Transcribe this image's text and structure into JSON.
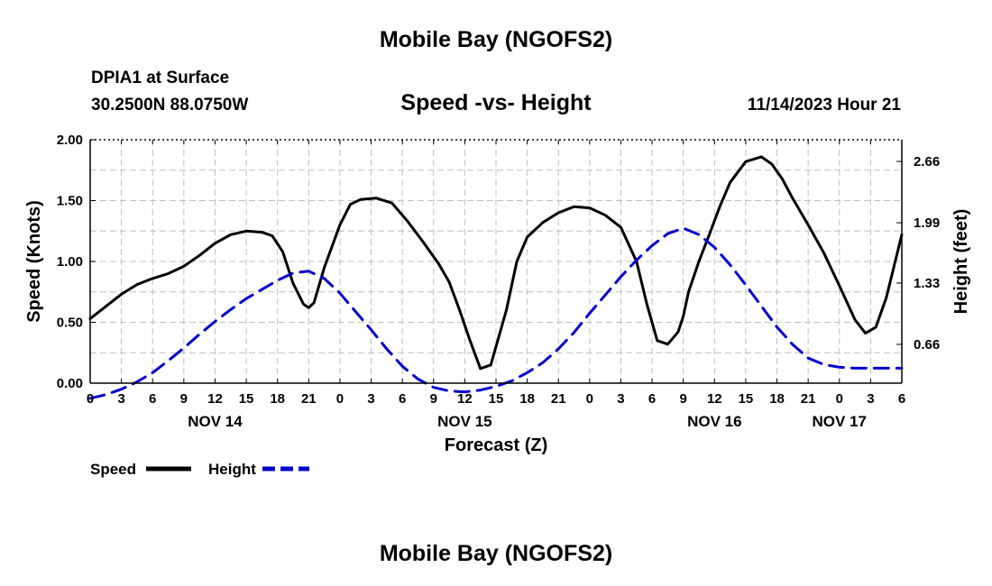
{
  "page": {
    "title": "Mobile Bay (NGOFS2)",
    "footer_title": "Mobile Bay (NGOFS2)",
    "station_line1": "DPIA1 at Surface",
    "station_line2": "30.2500N  88.0750W",
    "chart_title": "Speed -vs- Height",
    "datetime": "11/14/2023 Hour 21"
  },
  "chart_data": {
    "type": "line",
    "title": "Speed -vs- Height",
    "xlabel": "Forecast (Z)",
    "ylabel": "Speed (Knots)",
    "y2label": "Height (feet)",
    "x_range_hours": [
      0,
      78
    ],
    "x_tick_labels": [
      "0",
      "3",
      "6",
      "9",
      "12",
      "15",
      "18",
      "21",
      "0",
      "3",
      "6",
      "9",
      "12",
      "15",
      "18",
      "21",
      "0",
      "3",
      "6",
      "9",
      "12",
      "15",
      "18",
      "21",
      "0",
      "3",
      "6"
    ],
    "day_labels": [
      {
        "label": "NOV 14",
        "hour": 12
      },
      {
        "label": "NOV 15",
        "hour": 36
      },
      {
        "label": "NOV 16",
        "hour": 60
      },
      {
        "label": "NOV 17",
        "hour": 72
      }
    ],
    "ylim": [
      0,
      2.0
    ],
    "y_ticks": [
      "0.00",
      "0.50",
      "1.00",
      "1.50",
      "2.00"
    ],
    "y2_ticks": [
      {
        "label": "0.66",
        "value": 0.66
      },
      {
        "label": "1.33",
        "value": 1.33
      },
      {
        "label": "1.99",
        "value": 1.99
      },
      {
        "label": "2.66",
        "value": 2.66
      }
    ],
    "grid": true,
    "legend": [
      {
        "name": "Speed",
        "color": "#000000",
        "style": "solid"
      },
      {
        "name": "Height",
        "color": "#0000cc",
        "style": "dashed"
      }
    ],
    "series": [
      {
        "name": "Speed",
        "axis": "left",
        "color": "#000000",
        "style": "solid",
        "x": [
          0,
          1.5,
          3,
          4.5,
          6,
          7.5,
          9,
          10.5,
          12,
          13.5,
          15,
          16.5,
          17.5,
          18.5,
          19.5,
          20.5,
          21,
          21.5,
          22.5,
          24,
          25,
          26,
          27.5,
          29,
          30.5,
          32,
          33.5,
          34.5,
          35.5,
          36.5,
          37.5,
          38.5,
          39,
          40,
          41,
          42,
          43.5,
          45,
          46.5,
          48,
          49.5,
          51,
          52.5,
          53.5,
          54.5,
          55.5,
          56.5,
          57,
          57.5,
          58.5,
          59.5,
          60.5,
          61.5,
          63,
          64.5,
          65.5,
          66.5,
          67.5,
          69,
          70.5,
          72,
          73.5,
          74.5,
          75.5,
          76.5,
          78
        ],
        "y": [
          0.53,
          0.63,
          0.73,
          0.81,
          0.86,
          0.9,
          0.96,
          1.05,
          1.15,
          1.22,
          1.25,
          1.24,
          1.21,
          1.08,
          0.82,
          0.65,
          0.62,
          0.66,
          0.95,
          1.3,
          1.47,
          1.51,
          1.52,
          1.48,
          1.33,
          1.16,
          0.98,
          0.83,
          0.6,
          0.35,
          0.12,
          0.15,
          0.3,
          0.6,
          1.0,
          1.2,
          1.32,
          1.4,
          1.45,
          1.44,
          1.38,
          1.28,
          1.0,
          0.65,
          0.35,
          0.32,
          0.42,
          0.55,
          0.75,
          1.0,
          1.22,
          1.45,
          1.65,
          1.82,
          1.86,
          1.8,
          1.68,
          1.52,
          1.3,
          1.07,
          0.8,
          0.52,
          0.41,
          0.46,
          0.7,
          1.22
        ]
      },
      {
        "name": "Height",
        "axis": "right",
        "color": "#0000cc",
        "style": "dashed",
        "x": [
          0,
          1.5,
          3,
          4.5,
          6,
          7.5,
          9,
          10.5,
          12,
          13.5,
          15,
          16.5,
          18,
          19.5,
          21,
          22.5,
          24,
          25.5,
          27,
          28.5,
          30,
          31.5,
          33,
          34.5,
          36,
          37.5,
          39,
          40.5,
          42,
          43.5,
          45,
          46.5,
          48,
          49.5,
          51,
          52.5,
          54,
          55.5,
          57,
          58.5,
          60,
          61.5,
          63,
          64.5,
          66,
          67.5,
          69,
          70.5,
          72,
          73.5,
          75,
          76.5,
          78
        ],
        "y": [
          0.07,
          0.11,
          0.17,
          0.25,
          0.35,
          0.48,
          0.62,
          0.77,
          0.91,
          1.04,
          1.16,
          1.26,
          1.36,
          1.44,
          1.46,
          1.38,
          1.22,
          1.02,
          0.82,
          0.61,
          0.42,
          0.28,
          0.19,
          0.15,
          0.14,
          0.16,
          0.2,
          0.26,
          0.35,
          0.46,
          0.61,
          0.79,
          1.0,
          1.2,
          1.4,
          1.58,
          1.74,
          1.87,
          1.93,
          1.86,
          1.72,
          1.53,
          1.31,
          1.08,
          0.85,
          0.66,
          0.51,
          0.44,
          0.41,
          0.4,
          0.4,
          0.4,
          0.4
        ]
      }
    ]
  }
}
